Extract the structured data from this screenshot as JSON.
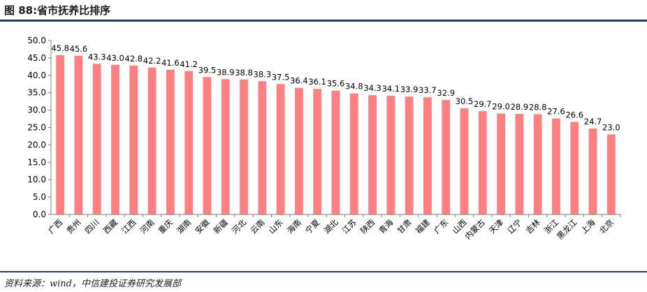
{
  "header": {
    "title": "图 88:省市抚养比排序"
  },
  "footer": {
    "source": "资料来源：wind，中信建投证券研究发展部"
  },
  "colors": {
    "bar": "#ff8080",
    "rule": "#1f3e70",
    "axis": "#7f7f7f"
  },
  "chart_data": {
    "type": "bar",
    "title": "",
    "xlabel": "",
    "ylabel": "",
    "ylim": [
      0,
      50
    ],
    "ytick_step": 5,
    "yticks": [
      "0.0",
      "5.0",
      "10.0",
      "15.0",
      "20.0",
      "25.0",
      "30.0",
      "35.0",
      "40.0",
      "45.0",
      "50.0"
    ],
    "grid": false,
    "categories": [
      "广西",
      "贵州",
      "四川",
      "西藏",
      "江西",
      "河南",
      "重庆",
      "湖南",
      "安徽",
      "新疆",
      "河北",
      "云南",
      "山东",
      "海南",
      "宁夏",
      "湖北",
      "江苏",
      "陕西",
      "青海",
      "甘肃",
      "福建",
      "广东",
      "山西",
      "内蒙古",
      "天津",
      "辽宁",
      "吉林",
      "浙江",
      "黑龙江",
      "上海",
      "北京"
    ],
    "values": [
      45.8,
      45.6,
      43.3,
      43.0,
      42.8,
      42.2,
      41.6,
      41.2,
      39.5,
      38.9,
      38.8,
      38.3,
      37.5,
      36.4,
      36.1,
      35.6,
      34.8,
      34.3,
      34.1,
      33.9,
      33.7,
      32.9,
      30.5,
      29.7,
      29.0,
      28.9,
      28.8,
      27.6,
      26.6,
      24.7,
      23.0
    ],
    "data_labels": [
      "45.8",
      "45.6",
      "43.3",
      "43.0",
      "42.8",
      "42.2",
      "41.6",
      "41.2",
      "39.5",
      "38.9",
      "38.8",
      "38.3",
      "37.5",
      "36.4",
      "36.1",
      "35.6",
      "34.8",
      "34.3",
      "34.1",
      "33.9",
      "33.7",
      "32.9",
      "30.5",
      "29.7",
      "29.0",
      "28.9",
      "28.8",
      "27.6",
      "26.6",
      "24.7",
      "23.0"
    ]
  }
}
